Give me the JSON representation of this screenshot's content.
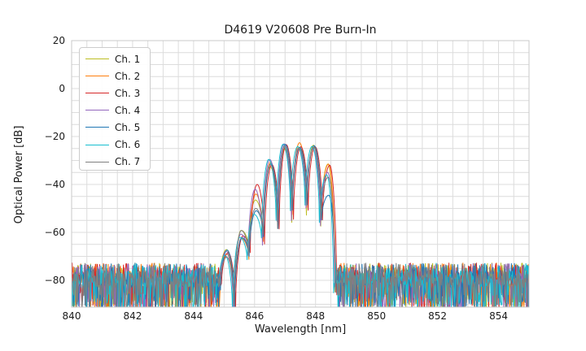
{
  "chart_data": {
    "type": "line",
    "title": "D4619 V20608 Pre Burn-In",
    "xlabel": "Wavelength [nm]",
    "ylabel": "Optical Power [dB]",
    "xlim": [
      840,
      855
    ],
    "ylim": [
      -91.2,
      20
    ],
    "x_ticks": [
      840,
      842,
      844,
      846,
      848,
      850,
      852,
      854
    ],
    "y_ticks": [
      20,
      0,
      -20,
      -40,
      -60,
      -80
    ],
    "y_tick_labels": [
      "20",
      "0",
      "−20",
      "−40",
      "−60",
      "−80"
    ],
    "grid": {
      "show": true,
      "x_step_nm": 0.5,
      "y_step_db": 5,
      "color": "#dcdcdc",
      "border_color": "#c9c9c9"
    },
    "legend": {
      "position": "upper-left",
      "border_color": "#cccccc"
    },
    "series": [
      {
        "name": "Ch. 1",
        "color": "#bcbd22",
        "shift_nm": 0.0
      },
      {
        "name": "Ch. 2",
        "color": "#ff7f0e",
        "shift_nm": 0.012
      },
      {
        "name": "Ch. 3",
        "color": "#d62728",
        "shift_nm": 0.055
      },
      {
        "name": "Ch. 4",
        "color": "#9467bd",
        "shift_nm": -0.012
      },
      {
        "name": "Ch. 5",
        "color": "#1f77b4",
        "shift_nm": 0.022
      },
      {
        "name": "Ch. 6",
        "color": "#17becf",
        "shift_nm": -0.045
      },
      {
        "name": "Ch. 7",
        "color": "#7f7f7f",
        "shift_nm": 0.005
      }
    ],
    "signal": {
      "description": "Seven overlapping optical spectra: flat noise floor near -80 dB across 840-844.8 nm and 848.7-855 nm, with a multi-lobed emission band between ~844.9 and ~848.7 nm whose lobe peaks rise to about -24 dB near 847-848 nm.",
      "noise_floor_db": -80,
      "noise_band_top_db": -73,
      "noise_band_bottom_db": -91,
      "noise_regions_nm": [
        [
          840.0,
          844.84
        ],
        [
          848.66,
          855.0
        ]
      ],
      "sample_step_nm": 0.02,
      "lobe_centers_nm": [
        845.08,
        845.56,
        846.03,
        846.51,
        846.98,
        847.46,
        847.93,
        848.41
      ],
      "lobe_peaks_db": [
        -68.5,
        -61.0,
        -46.0,
        -31.0,
        -24.2,
        -23.8,
        -24.5,
        -34.0
      ],
      "lobe_peak_spread_db": [
        4.0,
        5.0,
        3.0,
        4.0,
        2.5,
        2.5,
        2.5,
        3.0
      ],
      "lobe3_channel_offsets_db": [
        -0.5,
        2.0,
        6.0,
        4.0,
        -5.0,
        -6.5,
        -4.0
      ],
      "lobe8_channel_offsets_db": [
        2.5,
        2.5,
        2.0,
        -1.0,
        -10.5,
        -2.0,
        -3.0
      ],
      "notch_x_nm": [
        844.86,
        845.32,
        845.8,
        846.27,
        846.75,
        847.22,
        847.7,
        848.17,
        848.64
      ],
      "notch_db": [
        -82,
        -91,
        -69,
        -63,
        -56,
        -53,
        -51,
        -56,
        -85
      ],
      "notch_spread_db": 6
    }
  }
}
